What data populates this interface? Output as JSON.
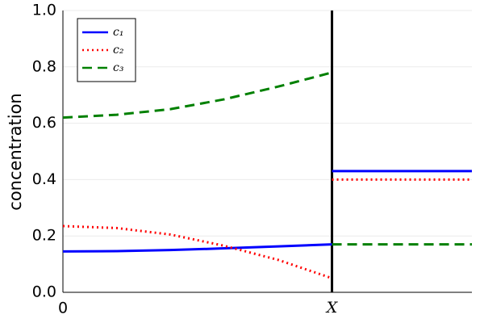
{
  "chart_data": {
    "type": "line",
    "ylabel": "concentration",
    "x": [
      0,
      0.2,
      0.4,
      0.6,
      0.8,
      1,
      1,
      1,
      1.52
    ],
    "series": [
      {
        "name": "c₁",
        "color": "#0000ff",
        "dash": "solid",
        "values": [
          0.145,
          0.146,
          0.15,
          0.156,
          0.163,
          0.17,
          null,
          0.43,
          0.43
        ]
      },
      {
        "name": "c₂",
        "color": "#ff0000",
        "dash": "dotted",
        "values": [
          0.235,
          0.228,
          0.205,
          0.165,
          0.115,
          0.05,
          null,
          0.4,
          0.4
        ]
      },
      {
        "name": "c₃",
        "color": "#008000",
        "dash": "dashed",
        "values": [
          0.62,
          0.63,
          0.65,
          0.685,
          0.73,
          0.78,
          null,
          0.17,
          0.17
        ]
      }
    ],
    "xlim": [
      0,
      1.52
    ],
    "xticks": [
      0,
      {
        "value": 1,
        "label": "X"
      }
    ],
    "ylim": [
      0,
      1
    ],
    "yticks": [
      {
        "value": 0,
        "label": "0.0"
      },
      0.2,
      0.4,
      0.6,
      0.8,
      {
        "value": 1,
        "label": "1.0"
      }
    ],
    "grid": true,
    "legend": "top-left"
  }
}
